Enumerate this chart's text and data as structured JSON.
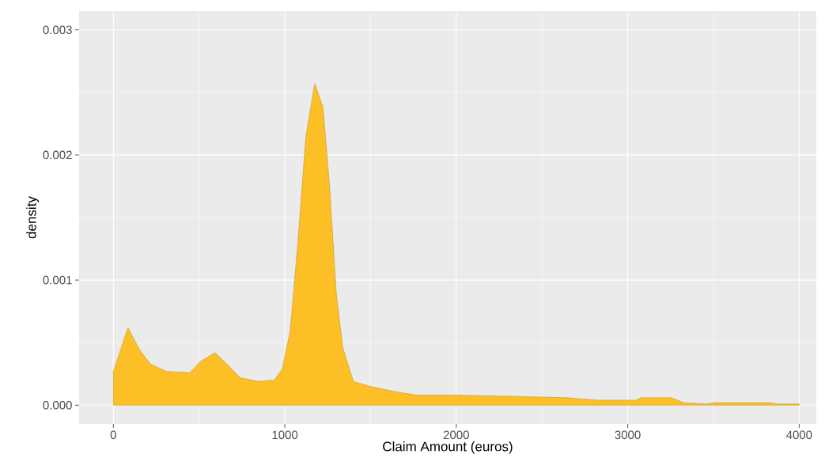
{
  "chart_data": {
    "type": "area",
    "xlabel": "Claim Amount (euros)",
    "ylabel": "density",
    "x": [
      0,
      85,
      154,
      215,
      308,
      446,
      508,
      592,
      661,
      738,
      846,
      938,
      985,
      1031,
      1077,
      1123,
      1174,
      1223,
      1261,
      1300,
      1338,
      1400,
      1499,
      1634,
      1772,
      1994,
      2351,
      2641,
      2827,
      3050,
      3076,
      3255,
      3323,
      3459,
      3511,
      3835,
      3867,
      4000
    ],
    "values": [
      0.00027,
      0.00062,
      0.00044,
      0.00033,
      0.00027,
      0.00026,
      0.00035,
      0.00042,
      0.00033,
      0.00022,
      0.00019,
      0.0002,
      0.00029,
      0.00059,
      0.00132,
      0.00215,
      0.00257,
      0.00238,
      0.00175,
      0.0009,
      0.00046,
      0.00019,
      0.00015,
      0.00011,
      8e-05,
      8e-05,
      7e-05,
      6e-05,
      4e-05,
      4e-05,
      6e-05,
      6e-05,
      2e-05,
      1e-05,
      2e-05,
      2e-05,
      1e-05,
      1e-05
    ],
    "color": "#fcbf26",
    "xlim": [
      -200,
      4100
    ],
    "ylim": [
      -0.00015,
      0.00315
    ],
    "xticks": [
      0,
      1000,
      2000,
      3000,
      4000
    ],
    "yticks": [
      {
        "value": 0,
        "label": "0.000"
      },
      {
        "value": 0.001,
        "label": "0.001"
      },
      {
        "value": 0.002,
        "label": "0.002"
      },
      {
        "value": 0.003,
        "label": "0.003"
      }
    ],
    "grid": true
  }
}
